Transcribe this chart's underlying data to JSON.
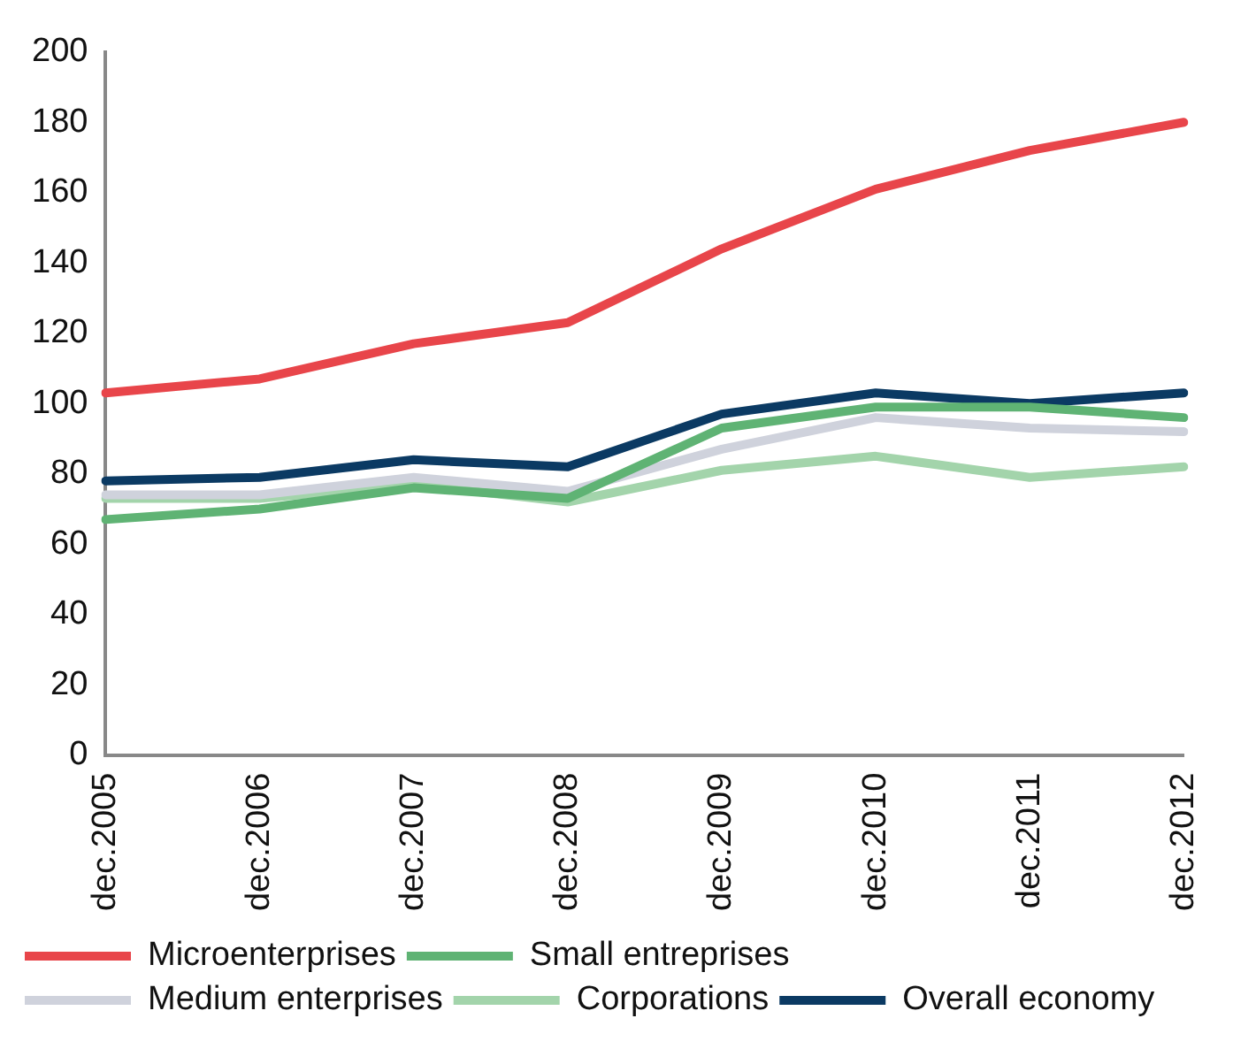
{
  "chart_data": {
    "type": "line",
    "categories": [
      "dec.2005",
      "dec.2006",
      "dec.2007",
      "dec.2008",
      "dec.2009",
      "dec.2010",
      "dec.2011",
      "dec.2012"
    ],
    "series": [
      {
        "name": "Microenterprises",
        "color": "#e8454a",
        "values": [
          103,
          107,
          117,
          123,
          144,
          161,
          172,
          180
        ]
      },
      {
        "name": "Small entreprises",
        "color": "#5fb374",
        "values": [
          67,
          70,
          76,
          73,
          93,
          99,
          99,
          96
        ]
      },
      {
        "name": "Medium enterprises",
        "color": "#cfd2dc",
        "values": [
          74,
          74,
          79,
          75,
          87,
          96,
          93,
          92
        ]
      },
      {
        "name": "Corporations",
        "color": "#a3d4ab",
        "values": [
          73,
          73,
          77,
          72,
          81,
          85,
          79,
          82
        ]
      },
      {
        "name": "Overall economy",
        "color": "#0b3a63",
        "values": [
          78,
          79,
          84,
          82,
          97,
          103,
          100,
          103
        ]
      }
    ],
    "ylim": [
      0,
      200
    ],
    "yticks": [
      0,
      20,
      40,
      60,
      80,
      100,
      120,
      140,
      160,
      180,
      200
    ],
    "grid": false,
    "legend": "bottom",
    "marker": "none",
    "line_style": "solid"
  }
}
